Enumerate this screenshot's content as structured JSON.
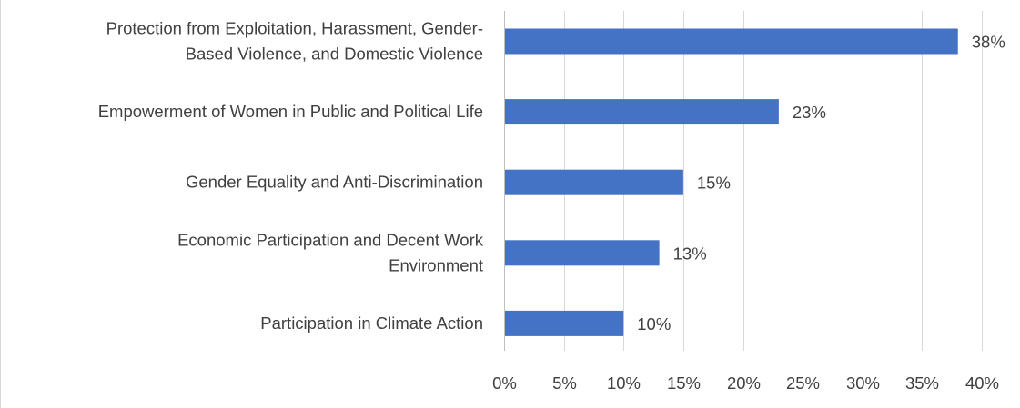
{
  "chart_data": {
    "type": "bar",
    "orientation": "horizontal",
    "title": "",
    "xlabel": "",
    "ylabel": "",
    "categories": [
      "Protection from Exploitation, Harassment, Gender-Based Violence, and Domestic Violence",
      "Empowerment of Women in Public and Political Life",
      "Gender Equality and Anti-Discrimination",
      "Economic Participation and Decent Work Environment",
      "Participation in Climate Action"
    ],
    "category_lines": [
      [
        "Protection from Exploitation, Harassment, Gender-",
        "Based Violence, and Domestic Violence"
      ],
      [
        "Empowerment of Women in Public and Political Life"
      ],
      [
        "Gender Equality and Anti-Discrimination"
      ],
      [
        "Economic Participation and Decent Work",
        "Environment"
      ],
      [
        "Participation in Climate Action"
      ]
    ],
    "values": [
      38,
      23,
      15,
      13,
      10
    ],
    "data_labels": [
      "38%",
      "23%",
      "15%",
      "13%",
      "10%"
    ],
    "xlim": [
      0,
      40
    ],
    "x_ticks": [
      0,
      5,
      10,
      15,
      20,
      25,
      30,
      35,
      40
    ],
    "x_tick_labels": [
      "0%",
      "5%",
      "10%",
      "15%",
      "20%",
      "25%",
      "30%",
      "35%",
      "40%"
    ],
    "grid": true,
    "legend": "none",
    "bar_color": "#4472c4",
    "grid_color": "#d9d9d9",
    "text_color": "#404040"
  }
}
